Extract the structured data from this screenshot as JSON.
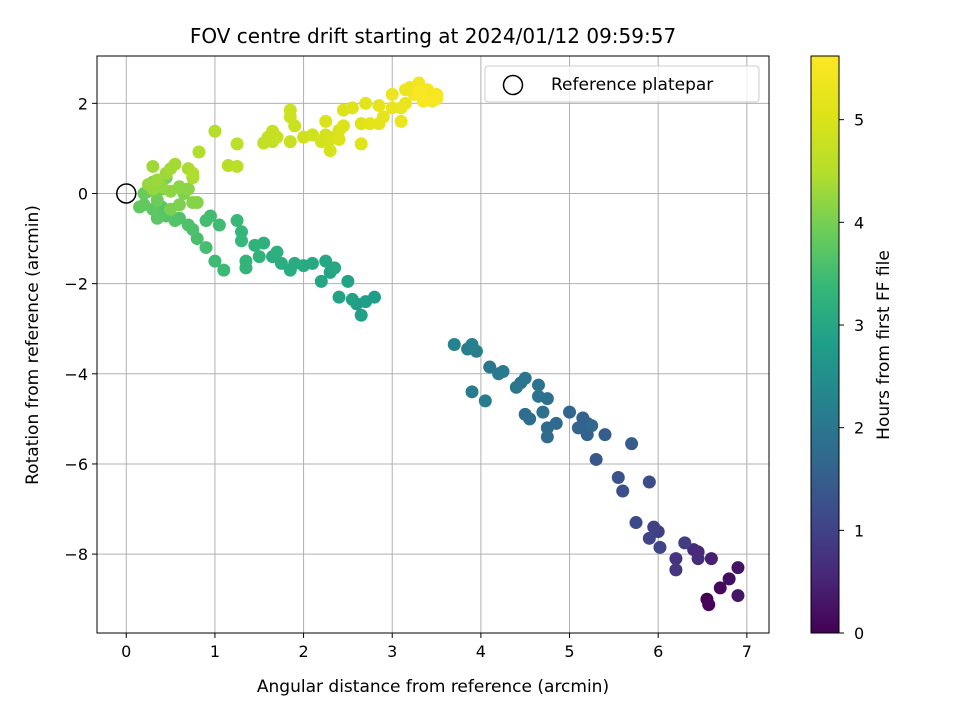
{
  "chart_data": {
    "type": "scatter",
    "title": "FOV centre drift starting at 2024/01/12 09:59:57",
    "xlabel": "Angular distance from reference (arcmin)",
    "ylabel": "Rotation from reference (arcmin)",
    "xlim": [
      -0.33,
      7.25
    ],
    "ylim": [
      -9.75,
      3.05
    ],
    "xticks": [
      0,
      1,
      2,
      3,
      4,
      5,
      6,
      7
    ],
    "xtick_labels": [
      "0",
      "1",
      "2",
      "3",
      "4",
      "5",
      "6",
      "7"
    ],
    "yticks": [
      2,
      0,
      -2,
      -4,
      -6,
      -8
    ],
    "ytick_labels": [
      "2",
      "0",
      "−2",
      "−4",
      "−6",
      "−8"
    ],
    "grid": true,
    "colormap": "viridis",
    "colorbar": {
      "label": "Hours from first FF file",
      "range": [
        0,
        5.62
      ],
      "ticks": [
        0,
        1,
        2,
        3,
        4,
        5
      ],
      "tick_labels": [
        "0",
        "1",
        "2",
        "3",
        "4",
        "5"
      ]
    },
    "reference": {
      "name": "Reference platepar",
      "x": 0,
      "y": 0
    },
    "legend": {
      "location": "top-right",
      "entries": [
        "Reference platepar"
      ]
    },
    "series": [
      {
        "points": [
          [
            6.55,
            -9.0,
            0.02
          ],
          [
            6.57,
            -9.12,
            0.05
          ],
          [
            6.7,
            -8.75,
            0.12
          ],
          [
            6.8,
            -8.55,
            0.2
          ],
          [
            6.9,
            -8.3,
            0.25
          ],
          [
            6.9,
            -8.92,
            0.3
          ],
          [
            6.6,
            -8.1,
            0.45
          ],
          [
            6.45,
            -7.95,
            0.55
          ],
          [
            6.4,
            -7.9,
            0.6
          ],
          [
            6.45,
            -8.1,
            0.65
          ],
          [
            6.2,
            -8.1,
            0.75
          ],
          [
            6.2,
            -8.35,
            0.8
          ],
          [
            6.3,
            -7.75,
            0.9
          ],
          [
            6.0,
            -7.5,
            0.95
          ],
          [
            5.95,
            -7.4,
            1.0
          ],
          [
            5.9,
            -7.65,
            1.05
          ],
          [
            6.02,
            -7.85,
            1.08
          ],
          [
            5.75,
            -7.3,
            1.12
          ],
          [
            5.9,
            -6.4,
            1.2
          ],
          [
            5.6,
            -6.6,
            1.25
          ],
          [
            5.55,
            -6.3,
            1.3
          ],
          [
            5.3,
            -5.9,
            1.4
          ],
          [
            5.7,
            -5.55,
            1.45
          ],
          [
            5.4,
            -5.35,
            1.5
          ],
          [
            5.2,
            -5.1,
            1.55
          ],
          [
            5.15,
            -4.98,
            1.57
          ],
          [
            5.2,
            -5.35,
            1.6
          ],
          [
            5.1,
            -5.2,
            1.62
          ],
          [
            5.0,
            -4.85,
            1.65
          ],
          [
            5.25,
            -5.15,
            1.68
          ],
          [
            4.85,
            -5.1,
            1.72
          ],
          [
            4.75,
            -5.2,
            1.75
          ],
          [
            4.75,
            -5.4,
            1.78
          ],
          [
            4.5,
            -4.9,
            1.8
          ],
          [
            4.55,
            -5.0,
            1.82
          ],
          [
            4.7,
            -4.85,
            1.85
          ],
          [
            4.75,
            -4.55,
            1.88
          ],
          [
            4.65,
            -4.5,
            1.9
          ],
          [
            4.65,
            -4.25,
            1.92
          ],
          [
            4.45,
            -4.2,
            1.95
          ],
          [
            4.5,
            -4.1,
            1.97
          ],
          [
            4.4,
            -4.3,
            2.0
          ],
          [
            4.1,
            -3.85,
            2.02
          ],
          [
            4.2,
            -4.0,
            2.05
          ],
          [
            4.25,
            -3.95,
            2.08
          ],
          [
            4.05,
            -4.6,
            2.1
          ],
          [
            3.9,
            -4.4,
            2.12
          ],
          [
            3.95,
            -3.5,
            2.15
          ],
          [
            3.85,
            -3.45,
            2.17
          ],
          [
            3.9,
            -3.35,
            2.2
          ],
          [
            3.7,
            -3.35,
            2.25
          ],
          [
            2.8,
            -2.3,
            2.8
          ],
          [
            2.7,
            -2.4,
            2.82
          ],
          [
            2.6,
            -2.45,
            2.84
          ],
          [
            2.65,
            -2.7,
            2.86
          ],
          [
            2.55,
            -2.35,
            2.88
          ],
          [
            2.4,
            -2.3,
            2.9
          ],
          [
            2.5,
            -1.95,
            2.92
          ],
          [
            2.3,
            -1.75,
            2.95
          ],
          [
            2.2,
            -1.95,
            2.97
          ],
          [
            2.25,
            -1.5,
            3.0
          ],
          [
            2.35,
            -1.65,
            3.02
          ],
          [
            2.1,
            -1.55,
            3.05
          ],
          [
            2.0,
            -1.6,
            3.08
          ],
          [
            1.9,
            -1.55,
            3.1
          ],
          [
            1.85,
            -1.7,
            3.12
          ],
          [
            1.75,
            -1.55,
            3.15
          ],
          [
            1.65,
            -1.4,
            3.18
          ],
          [
            1.7,
            -1.3,
            3.2
          ],
          [
            1.55,
            -1.1,
            3.22
          ],
          [
            1.45,
            -1.15,
            3.25
          ],
          [
            1.5,
            -1.4,
            3.27
          ],
          [
            1.35,
            -1.5,
            3.3
          ],
          [
            1.35,
            -1.65,
            3.32
          ],
          [
            1.3,
            -0.85,
            3.35
          ],
          [
            1.3,
            -1.05,
            3.37
          ],
          [
            1.25,
            -0.6,
            3.4
          ],
          [
            1.1,
            -1.7,
            3.42
          ],
          [
            1.0,
            -1.5,
            3.45
          ],
          [
            1.05,
            -0.7,
            3.47
          ],
          [
            0.95,
            -0.5,
            3.5
          ],
          [
            0.9,
            -0.6,
            3.52
          ],
          [
            0.9,
            -1.2,
            3.55
          ],
          [
            0.8,
            -1.0,
            3.57
          ],
          [
            0.75,
            -0.8,
            3.6
          ],
          [
            0.7,
            -0.7,
            3.62
          ],
          [
            0.6,
            -0.55,
            3.65
          ],
          [
            0.55,
            -0.6,
            3.67
          ],
          [
            0.45,
            -0.5,
            3.7
          ],
          [
            0.4,
            -0.3,
            3.72
          ],
          [
            0.35,
            -0.55,
            3.75
          ],
          [
            0.3,
            -0.35,
            3.77
          ],
          [
            0.2,
            -0.25,
            3.8
          ],
          [
            0.15,
            -0.3,
            3.82
          ],
          [
            0.2,
            0.0,
            3.85
          ],
          [
            0.25,
            0.05,
            3.87
          ],
          [
            0.3,
            0.15,
            3.9
          ],
          [
            0.35,
            -0.15,
            3.92
          ],
          [
            0.4,
            0.1,
            3.95
          ],
          [
            0.3,
            0.25,
            3.97
          ],
          [
            0.45,
            0.35,
            4.0
          ],
          [
            0.5,
            -0.35,
            4.02
          ],
          [
            0.6,
            -0.25,
            4.05
          ],
          [
            0.65,
            0.0,
            4.07
          ],
          [
            0.75,
            -0.2,
            4.1
          ],
          [
            0.8,
            -0.2,
            4.12
          ],
          [
            0.7,
            0.1,
            4.15
          ],
          [
            0.6,
            0.15,
            4.17
          ],
          [
            0.5,
            0.05,
            4.2
          ],
          [
            0.4,
            0.15,
            4.22
          ],
          [
            0.3,
            0.1,
            4.24
          ],
          [
            0.25,
            0.2,
            4.26
          ],
          [
            0.35,
            0.3,
            4.28
          ],
          [
            0.45,
            0.45,
            4.3
          ],
          [
            0.3,
            0.6,
            4.32
          ],
          [
            0.5,
            0.55,
            4.35
          ],
          [
            0.55,
            0.65,
            4.37
          ],
          [
            0.7,
            0.55,
            4.4
          ],
          [
            0.75,
            0.35,
            4.42
          ],
          [
            0.75,
            0.45,
            4.44
          ],
          [
            0.82,
            0.92,
            4.46
          ],
          [
            1.0,
            1.38,
            4.5
          ],
          [
            1.15,
            0.62,
            4.55
          ],
          [
            1.25,
            0.6,
            4.58
          ],
          [
            1.25,
            1.1,
            4.6
          ],
          [
            1.55,
            1.12,
            4.65
          ],
          [
            1.65,
            1.15,
            4.68
          ],
          [
            1.6,
            1.25,
            4.7
          ],
          [
            1.65,
            1.38,
            4.72
          ],
          [
            1.7,
            1.25,
            4.74
          ],
          [
            1.85,
            1.15,
            4.76
          ],
          [
            1.9,
            1.5,
            4.78
          ],
          [
            1.85,
            1.7,
            4.8
          ],
          [
            1.85,
            1.85,
            4.82
          ],
          [
            2.0,
            1.25,
            4.85
          ],
          [
            2.1,
            1.3,
            4.87
          ],
          [
            2.2,
            1.15,
            4.9
          ],
          [
            2.25,
            1.3,
            4.92
          ],
          [
            2.3,
            1.2,
            4.94
          ],
          [
            2.3,
            0.95,
            4.96
          ],
          [
            2.35,
            1.25,
            4.98
          ],
          [
            2.25,
            1.6,
            5.0
          ],
          [
            2.4,
            1.4,
            5.02
          ],
          [
            2.4,
            1.2,
            5.04
          ],
          [
            2.45,
            1.5,
            5.06
          ],
          [
            2.45,
            1.85,
            5.08
          ],
          [
            2.55,
            1.9,
            5.1
          ],
          [
            2.65,
            1.55,
            5.12
          ],
          [
            2.65,
            1.1,
            5.14
          ],
          [
            2.7,
            2.0,
            5.16
          ],
          [
            2.75,
            1.55,
            5.18
          ],
          [
            2.85,
            1.55,
            5.2
          ],
          [
            2.9,
            1.7,
            5.22
          ],
          [
            2.85,
            1.95,
            5.24
          ],
          [
            3.0,
            1.9,
            5.26
          ],
          [
            3.1,
            1.9,
            5.28
          ],
          [
            3.1,
            1.6,
            5.3
          ],
          [
            3.15,
            2.0,
            5.32
          ],
          [
            3.0,
            2.2,
            5.34
          ],
          [
            3.15,
            2.3,
            5.36
          ],
          [
            3.2,
            2.35,
            5.38
          ],
          [
            3.25,
            2.2,
            5.4
          ],
          [
            3.3,
            2.45,
            5.42
          ],
          [
            3.35,
            2.2,
            5.44
          ],
          [
            3.4,
            2.3,
            5.46
          ],
          [
            3.45,
            2.05,
            5.48
          ],
          [
            3.5,
            2.2,
            5.5
          ],
          [
            3.5,
            2.1,
            5.52
          ],
          [
            3.35,
            2.05,
            5.54
          ],
          [
            3.3,
            2.25,
            5.56
          ]
        ]
      }
    ]
  }
}
